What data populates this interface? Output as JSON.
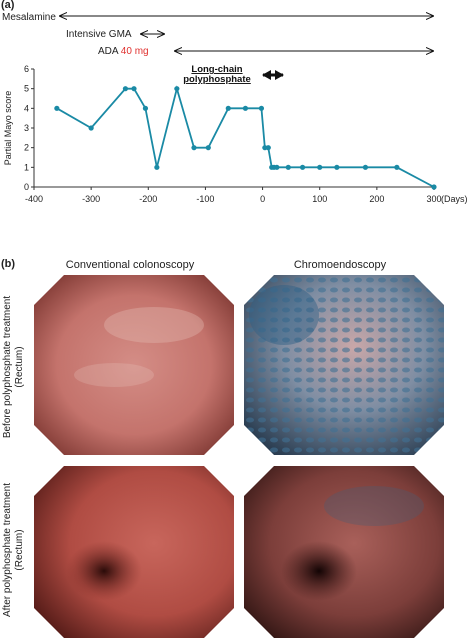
{
  "panel_a": {
    "label": "(a)",
    "bars": [
      {
        "name": "mesalamine",
        "text": "Mesalamine",
        "dose": ""
      },
      {
        "name": "intensive-gma",
        "text": "Intensive GMA",
        "dose": ""
      },
      {
        "name": "ada",
        "text": "ADA",
        "dose": "40 mg"
      }
    ],
    "polyphosphate": {
      "line1": "Long-chain",
      "line2": "polyphosphate"
    },
    "dose_color": "#e0312f",
    "line_color": "#1a8aa5"
  },
  "chart_data": {
    "type": "line",
    "title": "",
    "xlabel": "(Days)",
    "ylabel": "Partial Mayo score",
    "xlim": [
      -400,
      300
    ],
    "ylim": [
      0,
      6
    ],
    "xticks": [
      -400,
      -300,
      -200,
      -100,
      0,
      100,
      200,
      300
    ],
    "yticks": [
      0,
      1,
      2,
      3,
      4,
      5,
      6
    ],
    "grid": false,
    "series": [
      {
        "x": [
          -360,
          -300,
          -240,
          -225,
          -205,
          -185,
          -150,
          -120,
          -95,
          -60,
          -30,
          -2,
          4,
          10,
          16,
          20,
          25,
          45,
          70,
          100,
          130,
          180,
          235,
          300
        ],
        "y": [
          4,
          3,
          5,
          5,
          4,
          1,
          5,
          2,
          2,
          4,
          4,
          4,
          2,
          2,
          1,
          1,
          1,
          1,
          1,
          1,
          1,
          1,
          1,
          0
        ]
      }
    ]
  },
  "panel_b": {
    "label": "(b)",
    "columns": [
      "Conventional colonoscopy",
      "Chromoendoscopy"
    ],
    "rows": [
      {
        "line1": "Before polyphosphate treatment",
        "line2": "(Rectum)"
      },
      {
        "line1": "After polyphosphate treatment",
        "line2": "(Rectum)"
      }
    ]
  }
}
